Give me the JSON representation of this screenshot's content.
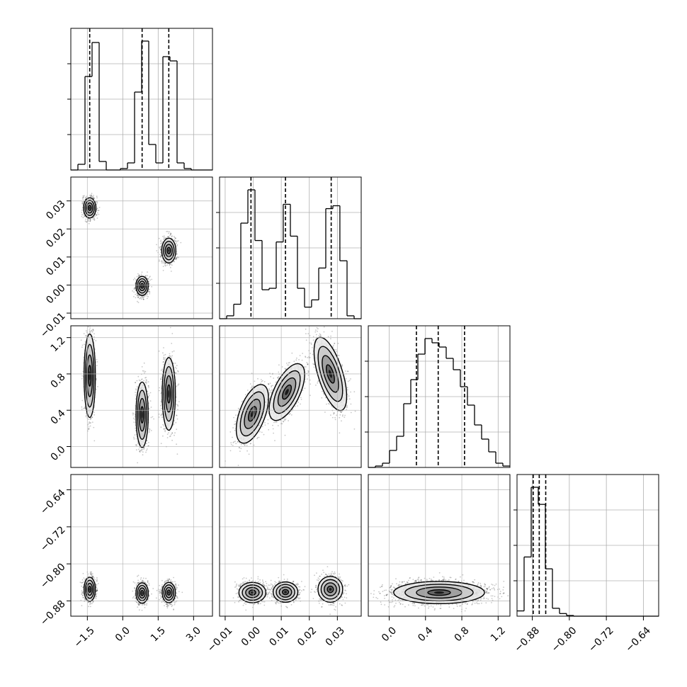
{
  "chart_data": {
    "type": "corner",
    "title": "",
    "grid": true,
    "parameters": [
      {
        "range": [
          -2.2,
          3.8
        ],
        "ticks": [
          -1.5,
          0.0,
          1.5,
          3.0
        ],
        "tick_labels": [
          "−1.5",
          "0.0",
          "1.5",
          "3.0"
        ]
      },
      {
        "range": [
          -0.012,
          0.0385
        ],
        "ticks": [
          -0.01,
          0.0,
          0.01,
          0.02,
          0.03
        ],
        "tick_labels": [
          "−0.01",
          "0.00",
          "0.01",
          "0.02",
          "0.03"
        ]
      },
      {
        "range": [
          -0.23,
          1.33
        ],
        "ticks": [
          0.0,
          0.4,
          0.8,
          1.2
        ],
        "tick_labels": [
          "0.0",
          "0.4",
          "0.8",
          "1.2"
        ]
      },
      {
        "range": [
          -0.913,
          -0.607
        ],
        "ticks": [
          -0.88,
          -0.8,
          -0.72,
          -0.64
        ],
        "tick_labels": [
          "−0.88",
          "−0.80",
          "−0.72",
          "−0.64"
        ]
      }
    ],
    "histograms": [
      {
        "parameter": 0,
        "bins": [
          -2.2,
          -1.9,
          -1.6,
          -1.3,
          -1.0,
          -0.7,
          -0.4,
          -0.1,
          0.2,
          0.5,
          0.8,
          1.1,
          1.4,
          1.7,
          2.0,
          2.3,
          2.6,
          2.9,
          3.2,
          3.5,
          3.8
        ],
        "counts": [
          0,
          0.04,
          0.66,
          0.9,
          0.06,
          0,
          0,
          0.01,
          0.05,
          0.55,
          0.91,
          0.18,
          0.05,
          0.8,
          0.77,
          0.05,
          0.01,
          0,
          0,
          0
        ],
        "quantiles": [
          -1.4,
          0.82,
          1.95
        ]
      },
      {
        "parameter": 1,
        "bins": [
          -0.012,
          -0.00947,
          -0.00695,
          -0.00442,
          -0.0019,
          0.00062,
          0.00315,
          0.00568,
          0.0082,
          0.0107,
          0.01325,
          0.01577,
          0.0183,
          0.0208,
          0.02335,
          0.02587,
          0.0284,
          0.0309,
          0.03345,
          0.03597,
          0.0385
        ],
        "counts": [
          0,
          0.02,
          0.1,
          0.66,
          0.89,
          0.54,
          0.2,
          0.21,
          0.53,
          0.79,
          0.57,
          0.21,
          0.08,
          0.13,
          0.35,
          0.76,
          0.78,
          0.4,
          0.02,
          0
        ],
        "quantiles": [
          -0.0008,
          0.0115,
          0.0278
        ]
      },
      {
        "parameter": 2,
        "bins": [
          -0.23,
          -0.152,
          -0.074,
          0.004,
          0.082,
          0.16,
          0.238,
          0.316,
          0.394,
          0.472,
          0.55,
          0.628,
          0.706,
          0.784,
          0.862,
          0.94,
          1.018,
          1.096,
          1.174,
          1.252,
          1.33
        ],
        "counts": [
          0,
          0.01,
          0.03,
          0.12,
          0.22,
          0.45,
          0.62,
          0.8,
          0.91,
          0.88,
          0.85,
          0.77,
          0.69,
          0.57,
          0.44,
          0.3,
          0.2,
          0.11,
          0.03,
          0.01
        ],
        "quantiles": [
          0.3,
          0.54,
          0.83
        ]
      },
      {
        "parameter": 3,
        "bins": [
          -0.913,
          -0.8977,
          -0.8824,
          -0.8671,
          -0.8518,
          -0.8365,
          -0.8212,
          -0.8059,
          -0.7906,
          -0.7753,
          -0.76,
          -0.7447,
          -0.7294,
          -0.7141,
          -0.6988,
          -0.6835,
          -0.6682,
          -0.6529,
          -0.6376,
          -0.6223,
          -0.607
        ],
        "counts": [
          0.04,
          0.45,
          0.98,
          0.85,
          0.36,
          0.06,
          0.02,
          0.005,
          0,
          0,
          0,
          0,
          0,
          0,
          0,
          0,
          0,
          0,
          0,
          0
        ],
        "quantiles": [
          -0.878,
          -0.865,
          -0.851
        ]
      }
    ],
    "joint": [
      {
        "x_param": 0,
        "y_param": 1,
        "clusters": [
          {
            "mean": [
              -1.4,
              0.0275
            ],
            "sd": [
              0.13,
              0.0018
            ],
            "n": 950,
            "rot": 0
          },
          {
            "mean": [
              0.82,
              -0.0003
            ],
            "sd": [
              0.13,
              0.0017
            ],
            "n": 950,
            "rot": 0
          },
          {
            "mean": [
              1.95,
              0.0123
            ],
            "sd": [
              0.15,
              0.0022
            ],
            "n": 950,
            "rot": 0
          }
        ]
      },
      {
        "x_param": 0,
        "y_param": 2,
        "clusters": [
          {
            "mean": [
              -1.4,
              0.78
            ],
            "sd": [
              0.12,
              0.23
            ],
            "n": 950,
            "rot": 0
          },
          {
            "mean": [
              0.82,
              0.35
            ],
            "sd": [
              0.13,
              0.18
            ],
            "n": 950,
            "rot": 0
          },
          {
            "mean": [
              1.95,
              0.58
            ],
            "sd": [
              0.14,
              0.2
            ],
            "n": 950,
            "rot": 0
          }
        ]
      },
      {
        "x_param": 0,
        "y_param": 3,
        "clusters": [
          {
            "mean": [
              -1.4,
              -0.855
            ],
            "sd": [
              0.12,
              0.013
            ],
            "n": 950,
            "rot": 0
          },
          {
            "mean": [
              0.82,
              -0.863
            ],
            "sd": [
              0.13,
              0.011
            ],
            "n": 950,
            "rot": 0
          },
          {
            "mean": [
              1.95,
              -0.862
            ],
            "sd": [
              0.14,
              0.011
            ],
            "n": 950,
            "rot": 0
          }
        ]
      },
      {
        "x_param": 1,
        "y_param": 2,
        "clusters": [
          {
            "mean": [
              -0.0003,
              0.36
            ],
            "sd": [
              0.0023,
              0.17
            ],
            "n": 950,
            "rot": 0.35
          },
          {
            "mean": [
              0.012,
              0.6
            ],
            "sd": [
              0.0023,
              0.17
            ],
            "n": 950,
            "rot": 0.45
          },
          {
            "mean": [
              0.0275,
              0.8
            ],
            "sd": [
              0.0022,
              0.21
            ],
            "n": 950,
            "rot": -0.3
          }
        ]
      },
      {
        "x_param": 1,
        "y_param": 3,
        "clusters": [
          {
            "mean": [
              -0.0003,
              -0.862
            ],
            "sd": [
              0.0024,
              0.011
            ],
            "n": 950,
            "rot": 0
          },
          {
            "mean": [
              0.0115,
              -0.861
            ],
            "sd": [
              0.0022,
              0.011
            ],
            "n": 950,
            "rot": 0
          },
          {
            "mean": [
              0.0275,
              -0.855
            ],
            "sd": [
              0.0022,
              0.014
            ],
            "n": 950,
            "rot": 0
          }
        ]
      },
      {
        "x_param": 2,
        "y_param": 3,
        "clusters": [
          {
            "mean": [
              0.55,
              -0.862
            ],
            "sd": [
              0.25,
              0.012
            ],
            "n": 2800,
            "rot": 0
          }
        ]
      }
    ]
  }
}
